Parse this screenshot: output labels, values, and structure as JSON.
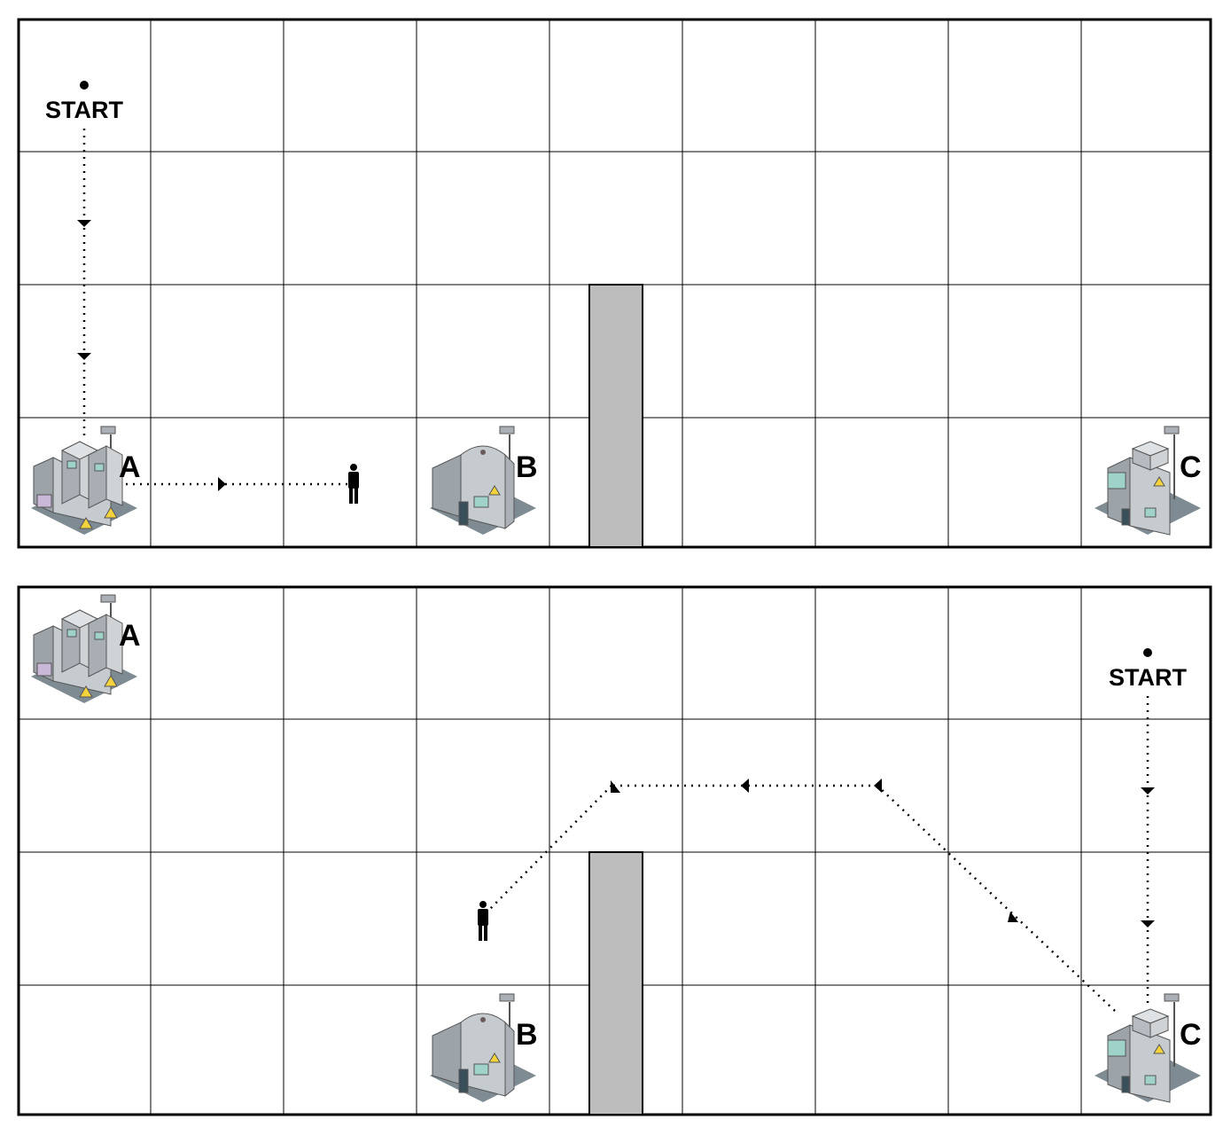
{
  "colors": {
    "grid": "#000000",
    "wall": "#bdbdbd",
    "machine_body": "#b8bcc0",
    "machine_shadow": "#7e8b93",
    "path": "#000000"
  },
  "panels": [
    {
      "start_label": "START",
      "machines": [
        {
          "label": "A",
          "icon": "machine-a-icon"
        },
        {
          "label": "B",
          "icon": "machine-b-icon"
        },
        {
          "label": "C",
          "icon": "machine-c-icon"
        }
      ],
      "person_icon": "person-icon"
    },
    {
      "start_label": "START",
      "machines": [
        {
          "label": "A",
          "icon": "machine-a-icon"
        },
        {
          "label": "B",
          "icon": "machine-b-icon"
        },
        {
          "label": "C",
          "icon": "machine-c-icon"
        }
      ],
      "person_icon": "person-icon"
    }
  ]
}
